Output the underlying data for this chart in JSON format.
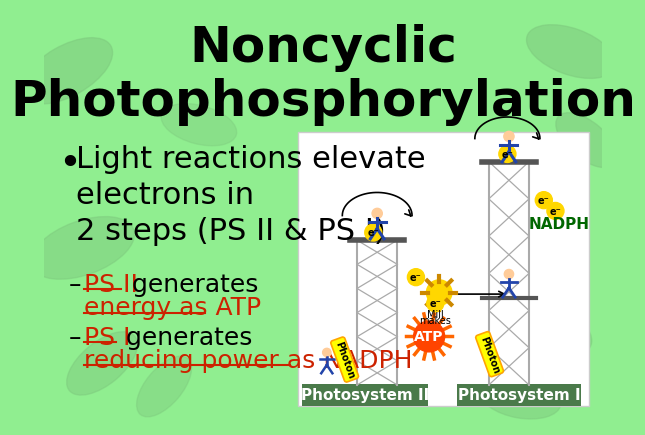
{
  "title_line1": "Noncyclic",
  "title_line2": "Photophosphorylation",
  "title_fontsize": 36,
  "title_color": "#000000",
  "bg_color": "#90EE90",
  "leaf_color": "#7DC87D",
  "bullet_text": "Light reactions elevate\nelectrons in\n2 steps (PS II & PS I)",
  "bullet_fontsize": 22,
  "bullet_color": "#000000",
  "sub_fontsize": 18,
  "link_color": "#CC2200",
  "dash_color": "#000000",
  "ps2_label": "Photosystem II",
  "ps1_label": "Photosystem I",
  "label_bg_color": "#4a7a4a",
  "label_fontsize": 11,
  "tower_color": "#aaaaaa",
  "electron_color": "#FFD700",
  "atp_burst_color": "#FF6600",
  "atp_fill_color": "#FF4400",
  "photon_color": "#FFFF00"
}
